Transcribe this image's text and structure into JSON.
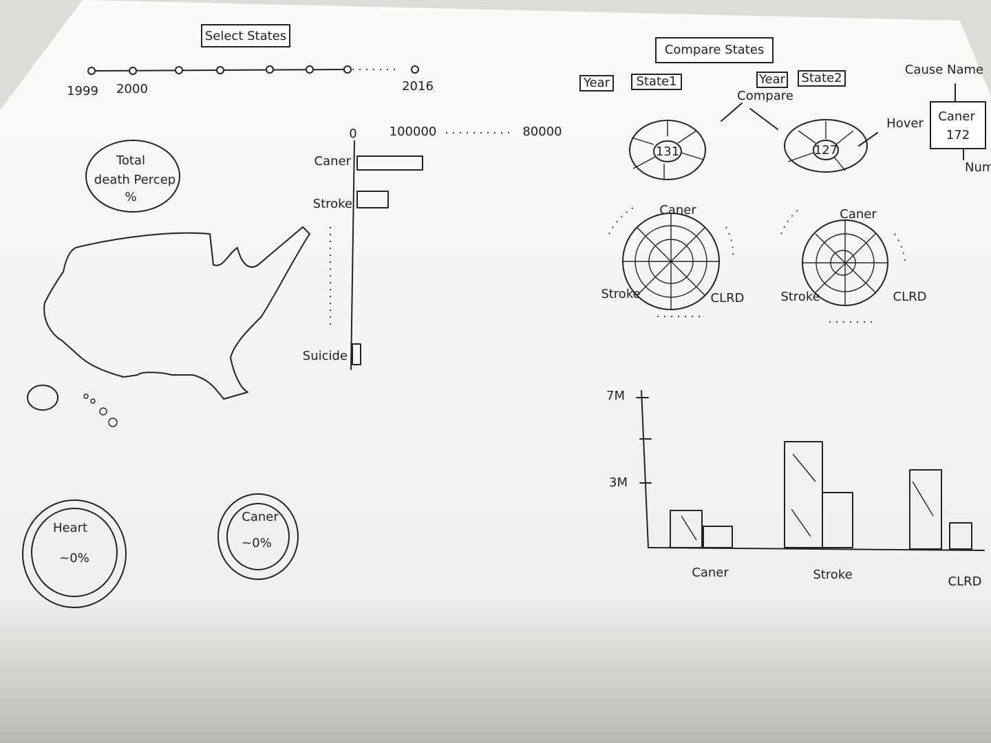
{
  "header": {
    "select_button": "Select States"
  },
  "timeline": {
    "labels": [
      "1999",
      "2000",
      "2016"
    ]
  },
  "total_death": {
    "title": "Total",
    "subtitle": "death Percep",
    "value": "%"
  },
  "bar_chart": {
    "axis_labels": [
      "0",
      "100000",
      "80000"
    ],
    "categories": [
      "Caner",
      "Stroke",
      "Suicide"
    ]
  },
  "gauges": [
    {
      "label": "Heart",
      "value": "~0%"
    },
    {
      "label": "Caner",
      "value": "~0%"
    }
  ],
  "compare": {
    "title": "Compare States",
    "controls": [
      "Year",
      "State1",
      "Year",
      "State2"
    ],
    "connector": "Compare",
    "pies": [
      {
        "value": "131"
      },
      {
        "value": "127"
      }
    ],
    "hover": "Hover",
    "tooltip": {
      "title": "Cause Name",
      "name": "Caner",
      "value": "172",
      "value_note": "Num"
    }
  },
  "radars": [
    {
      "labels": [
        "Caner",
        "Stroke",
        "CLRD"
      ]
    },
    {
      "labels": [
        "Caner",
        "Stroke",
        "CLRD"
      ]
    }
  ],
  "column_chart": {
    "yticks": [
      "7M",
      "3M"
    ],
    "categories": [
      "Caner",
      "Stroke",
      "CLRD"
    ]
  }
}
